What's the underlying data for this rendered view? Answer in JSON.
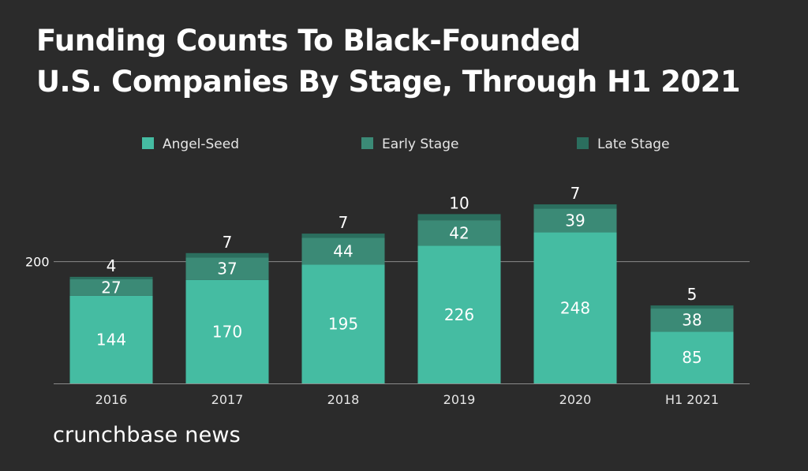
{
  "title_lines": [
    "Funding Counts To Black-Founded",
    "U.S. Companies By Stage, Through H1 2021"
  ],
  "brand": "crunchbase news",
  "colors": {
    "background": "#2b2b2b",
    "angel_seed": "#45bca2",
    "early_stage": "#3b8a76",
    "late_stage": "#2b6e5e",
    "gridline": "#8a8a8a",
    "text": "#ffffff"
  },
  "chart_data": {
    "type": "bar",
    "stacked": true,
    "categories": [
      "2016",
      "2017",
      "2018",
      "2019",
      "2020",
      "H1 2021"
    ],
    "series": [
      {
        "name": "Angel-Seed",
        "values": [
          144,
          170,
          195,
          226,
          248,
          85
        ]
      },
      {
        "name": "Early Stage",
        "values": [
          27,
          37,
          44,
          42,
          39,
          38
        ]
      },
      {
        "name": "Late Stage",
        "values": [
          4,
          7,
          7,
          10,
          7,
          5
        ]
      }
    ],
    "y_ticks": [
      200
    ],
    "ylim": [
      0,
      300
    ],
    "legend_position": "top",
    "grid": true
  }
}
